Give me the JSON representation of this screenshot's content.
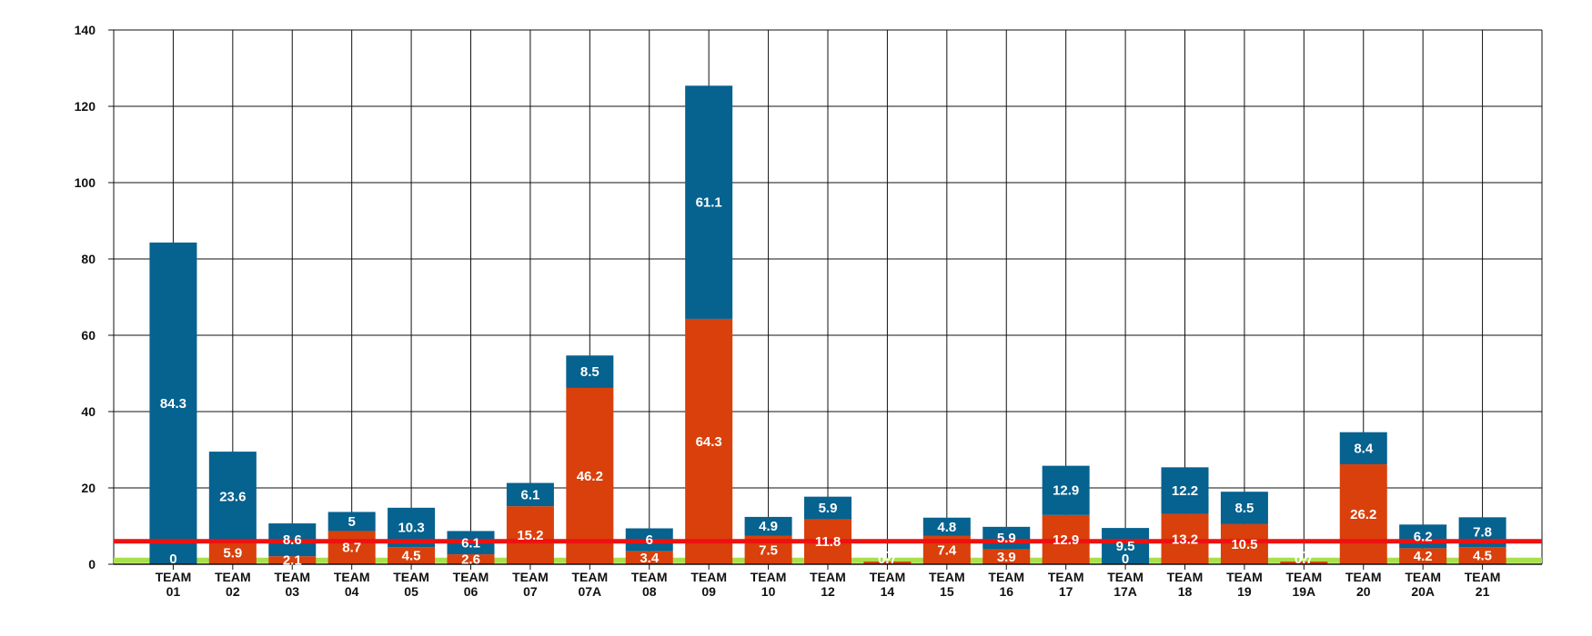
{
  "chart_data": {
    "type": "bar",
    "stacked": true,
    "categories": [
      [
        "TEAM",
        "01"
      ],
      [
        "TEAM",
        "02"
      ],
      [
        "TEAM",
        "03"
      ],
      [
        "TEAM",
        "04"
      ],
      [
        "TEAM",
        "05"
      ],
      [
        "TEAM",
        "06"
      ],
      [
        "TEAM",
        "07"
      ],
      [
        "TEAM",
        "07A"
      ],
      [
        "TEAM",
        "08"
      ],
      [
        "TEAM",
        "09"
      ],
      [
        "TEAM",
        "10"
      ],
      [
        "TEAM",
        "12"
      ],
      [
        "TEAM",
        "14"
      ],
      [
        "TEAM",
        "15"
      ],
      [
        "TEAM",
        "16"
      ],
      [
        "TEAM",
        "17"
      ],
      [
        "TEAM",
        "17A"
      ],
      [
        "TEAM",
        "18"
      ],
      [
        "TEAM",
        "19"
      ],
      [
        "TEAM",
        "19A"
      ],
      [
        "TEAM",
        "20"
      ],
      [
        "TEAM",
        "20A"
      ],
      [
        "TEAM",
        "21"
      ]
    ],
    "series": [
      {
        "color": "#d9400b",
        "values": [
          0,
          5.9,
          2.1,
          8.7,
          4.5,
          2.6,
          15.2,
          46.2,
          3.4,
          64.3,
          7.5,
          11.8,
          0.7,
          7.4,
          3.9,
          12.9,
          0,
          13.2,
          10.5,
          0.7,
          26.2,
          4.2,
          4.5
        ],
        "labels": [
          "0",
          "5.9",
          "2.1",
          "8.7",
          "4.5",
          "2.6",
          "15.2",
          "46.2",
          "3.4",
          "64.3",
          "7.5",
          "11.8",
          "0.7",
          "7.4",
          "3.9",
          "12.9",
          "0",
          "13.2",
          "10.5",
          "0.7",
          "26.2",
          "4.2",
          "4.5"
        ]
      },
      {
        "color": "#06628f",
        "values": [
          84.3,
          23.6,
          8.6,
          5,
          10.3,
          6.1,
          6.1,
          8.5,
          6,
          61.1,
          4.9,
          5.9,
          0,
          4.8,
          5.9,
          12.9,
          9.5,
          12.2,
          8.5,
          0,
          8.4,
          6.2,
          7.8
        ],
        "labels": [
          "84.3",
          "23.6",
          "8.6",
          "5",
          "10.3",
          "6.1",
          "6.1",
          "8.5",
          "6",
          "61.1",
          "4.9",
          "5.9",
          "0",
          "4.8",
          "5.9",
          "12.9",
          "9.5",
          "12.2",
          "8.5",
          "0",
          "8.4",
          "6.2",
          "7.8"
        ]
      }
    ],
    "ylim": [
      0,
      140
    ],
    "yticks": [
      "0",
      "20",
      "40",
      "60",
      "80",
      "100",
      "120",
      "140"
    ],
    "grid": true,
    "reference_lines": [
      {
        "value": 6,
        "color": "#ee1111"
      },
      {
        "value": 1,
        "color": "#a8e04a"
      }
    ],
    "title": "",
    "xlabel": "",
    "ylabel": ""
  }
}
